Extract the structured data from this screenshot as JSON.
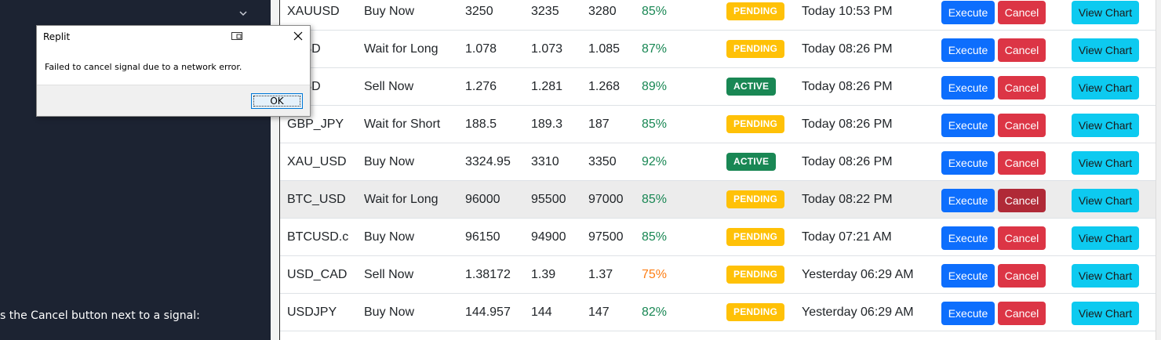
{
  "left_panel": {
    "snippet": "s the Cancel button next to a signal:"
  },
  "signals": [
    {
      "symbol": "XAUUSD",
      "action": "Buy Now",
      "entry": "3250",
      "stop_loss": "3235",
      "take_profit": "3280",
      "confidence": "85%",
      "status": "PENDING",
      "time": "Today 10:53 PM"
    },
    {
      "symbol": "_USD",
      "action": "Wait for Long",
      "entry": "1.078",
      "stop_loss": "1.073",
      "take_profit": "1.085",
      "confidence": "87%",
      "status": "PENDING",
      "time": "Today 08:26 PM"
    },
    {
      "symbol": "_USD",
      "action": "Sell Now",
      "entry": "1.276",
      "stop_loss": "1.281",
      "take_profit": "1.268",
      "confidence": "89%",
      "status": "ACTIVE",
      "time": "Today 08:26 PM"
    },
    {
      "symbol": "GBP_JPY",
      "action": "Wait for Short",
      "entry": "188.5",
      "stop_loss": "189.3",
      "take_profit": "187",
      "confidence": "85%",
      "status": "PENDING",
      "time": "Today 08:26 PM"
    },
    {
      "symbol": "XAU_USD",
      "action": "Buy Now",
      "entry": "3324.95",
      "stop_loss": "3310",
      "take_profit": "3350",
      "confidence": "92%",
      "status": "ACTIVE",
      "time": "Today 08:26 PM"
    },
    {
      "symbol": "BTC_USD",
      "action": "Wait for Long",
      "entry": "96000",
      "stop_loss": "95500",
      "take_profit": "97000",
      "confidence": "85%",
      "status": "PENDING",
      "time": "Today 08:22 PM"
    },
    {
      "symbol": "BTCUSD.c",
      "action": "Buy Now",
      "entry": "96150",
      "stop_loss": "94900",
      "take_profit": "97500",
      "confidence": "85%",
      "status": "PENDING",
      "time": "Today 07:21 AM"
    },
    {
      "symbol": "USD_CAD",
      "action": "Sell Now",
      "entry": "1.38172",
      "stop_loss": "1.39",
      "take_profit": "1.37",
      "confidence": "75%",
      "status": "PENDING",
      "time": "Yesterday 06:29 AM"
    },
    {
      "symbol": "USDJPY",
      "action": "Buy Now",
      "entry": "144.957",
      "stop_loss": "144",
      "take_profit": "147",
      "confidence": "82%",
      "status": "PENDING",
      "time": "Yesterday 06:29 AM"
    }
  ],
  "buttons": {
    "execute": "Execute",
    "cancel": "Cancel",
    "view_chart": "View Chart"
  },
  "dialog": {
    "title": "Replit",
    "message": "Failed to cancel signal due to a network error.",
    "ok_label": "OK"
  },
  "colors": {
    "execute": "#0d6efd",
    "cancel": "#dc3545",
    "view_chart": "#0dcaf0",
    "pending": "#ffc107",
    "active": "#198754",
    "confidence_high": "#198754",
    "confidence_mid": "#fd7e14"
  },
  "icons": [
    "chevron-down-icon",
    "window-mode-icon",
    "close-icon"
  ]
}
